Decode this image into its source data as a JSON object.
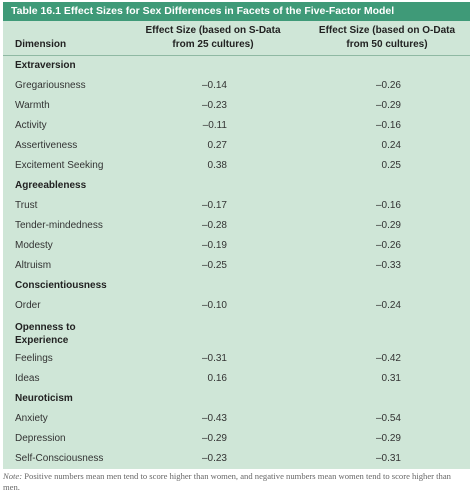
{
  "table": {
    "title": "Table 16.1  Effect Sizes for Sex Differences in Facets of the Five-Factor Model",
    "headers": {
      "dimension": "Dimension",
      "s_data_line1": "Effect Size (based on S-Data",
      "s_data_line2": "from 25 cultures)",
      "o_data_line1": "Effect Size (based on O-Data",
      "o_data_line2": "from 50 cultures)"
    },
    "rows": [
      {
        "label": "Extraversion",
        "s": "",
        "o": ""
      },
      {
        "label": "Gregariousness",
        "s": "–0.14",
        "o": "–0.26"
      },
      {
        "label": "Warmth",
        "s": "–0.23",
        "o": "–0.29"
      },
      {
        "label": "Activity",
        "s": "–0.11",
        "o": "–0.16"
      },
      {
        "label": "Assertiveness",
        "s": "0.27",
        "o": "0.24"
      },
      {
        "label": "Excitement Seeking",
        "s": "0.38",
        "o": "0.25"
      },
      {
        "label": "Agreeableness",
        "s": "",
        "o": ""
      },
      {
        "label": "Trust",
        "s": "–0.17",
        "o": "–0.16"
      },
      {
        "label": "Tender-mindedness",
        "s": "–0.28",
        "o": "–0.29"
      },
      {
        "label": "Modesty",
        "s": "–0.19",
        "o": "–0.26"
      },
      {
        "label": "Altruism",
        "s": "–0.25",
        "o": "–0.33"
      },
      {
        "label": "Conscientiousness",
        "s": "",
        "o": ""
      },
      {
        "label": "Order",
        "s": "–0.10",
        "o": "–0.24"
      },
      {
        "label": "Openness to Experience",
        "s": "",
        "o": ""
      },
      {
        "label": "Feelings",
        "s": "–0.31",
        "o": "–0.42"
      },
      {
        "label": "Ideas",
        "s": "0.16",
        "o": "0.31"
      },
      {
        "label": "Neuroticism",
        "s": "",
        "o": ""
      },
      {
        "label": "Anxiety",
        "s": "–0.43",
        "o": "–0.54"
      },
      {
        "label": "Depression",
        "s": "–0.29",
        "o": "–0.29"
      },
      {
        "label": "Self-Consciousness",
        "s": "–0.23",
        "o": "–0.31"
      }
    ]
  },
  "note": {
    "label": "Note:",
    "text": " Positive numbers mean men tend to score higher than women, and negative numbers mean women tend to score higher than men."
  },
  "colors": {
    "title_bar": "#3f9a78",
    "table_background": "#cfe6d7"
  }
}
